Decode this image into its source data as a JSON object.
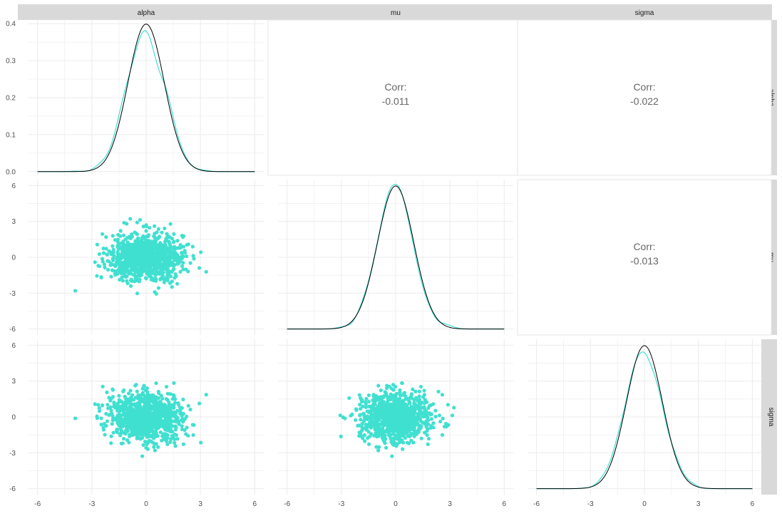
{
  "chart_data": {
    "type": "scatter",
    "title": "",
    "variables": [
      "alpha",
      "mu",
      "sigma"
    ],
    "x_ticks": [
      -6,
      -3,
      0,
      3,
      6
    ],
    "colors": {
      "points": "#40E0D0",
      "empirical_density": "#40E0D0",
      "normal_density": "#000000",
      "strip_background": "#D9D9D9",
      "grid": "#EBEBEB",
      "panel_border": "#E6E6E6",
      "corr_text": "#666666"
    },
    "density_panels": [
      {
        "variable": "alpha",
        "y_ticks": [
          "0.0",
          "0.1",
          "0.2",
          "0.3",
          "0.4"
        ],
        "ylim": [
          -0.01,
          0.41
        ]
      },
      {
        "variable": "mu",
        "y_ticks": [
          "-6",
          "-3",
          "0",
          "3",
          "6"
        ]
      },
      {
        "variable": "sigma",
        "y_ticks": [
          "-6",
          "-3",
          "0",
          "3",
          "6"
        ]
      }
    ],
    "scatter_y_ticks": [
      "-6",
      "-3",
      "0",
      "3",
      "6"
    ],
    "ylim_scatter": [
      -6.5,
      6.5
    ],
    "xlim": [
      -6.5,
      6.5
    ],
    "correlations": [
      {
        "row": "alpha",
        "col": "mu",
        "label": "Corr:",
        "value": "-0.011"
      },
      {
        "row": "alpha",
        "col": "sigma",
        "label": "Corr:",
        "value": "-0.022"
      },
      {
        "row": "mu",
        "col": "sigma",
        "label": "Corr:",
        "value": "-0.013"
      }
    ],
    "scatter_samples": {
      "approx_n": 1000,
      "x_mean": 0,
      "x_sd": 1,
      "y_mean": 0,
      "y_sd": 1
    }
  }
}
